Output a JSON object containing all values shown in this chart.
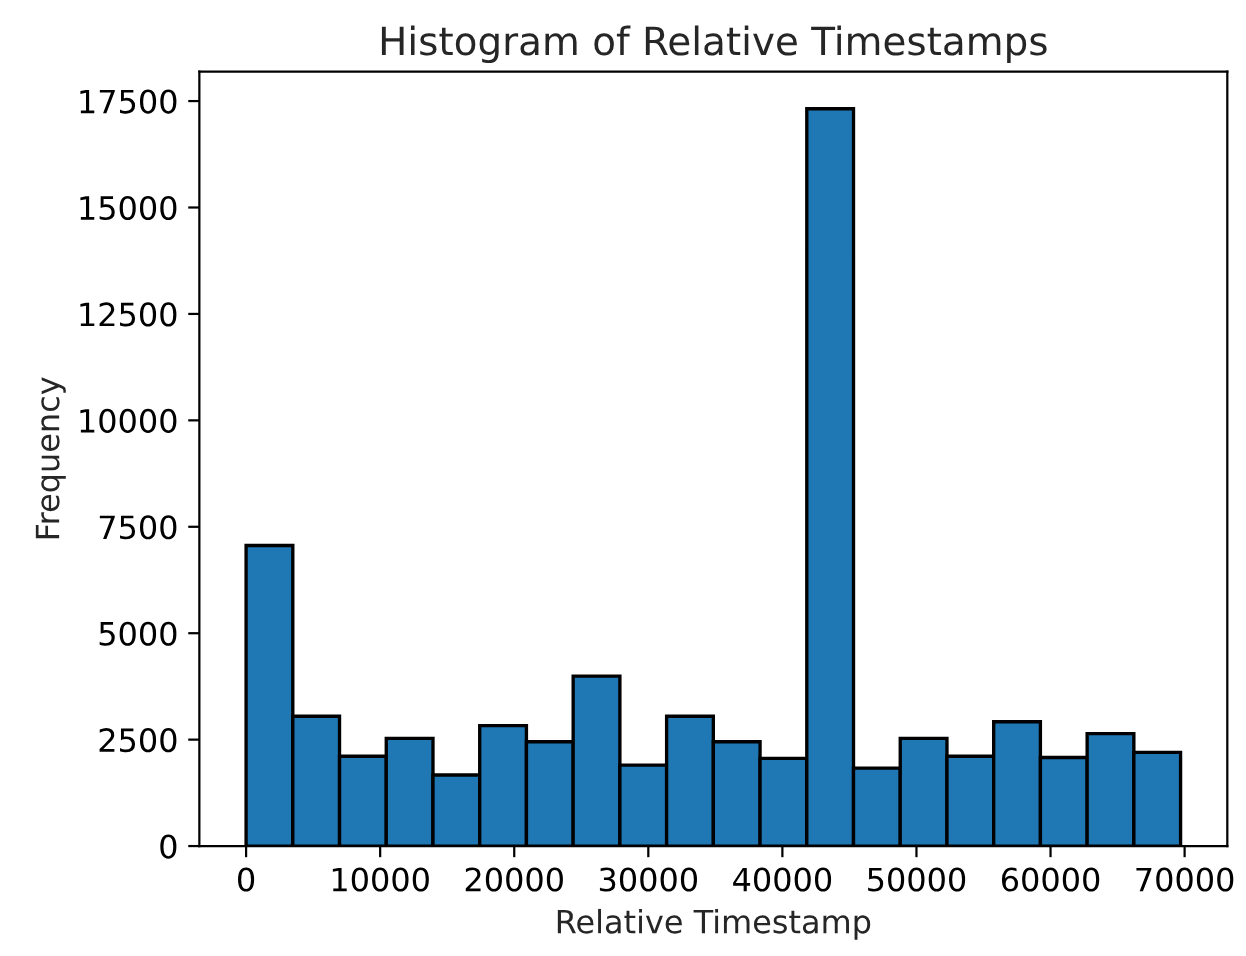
{
  "chart_data": {
    "type": "histogram",
    "title": "Histogram of Relative Timestamps",
    "xlabel": "Relative Timestamp",
    "ylabel": "Frequency",
    "bins": [
      0,
      3485,
      6970,
      10455,
      13940,
      17425,
      20910,
      24395,
      27880,
      31365,
      34850,
      38335,
      41820,
      45305,
      48790,
      52275,
      55760,
      59245,
      62730,
      66215,
      69700
    ],
    "values": [
      7060,
      3050,
      2110,
      2530,
      1670,
      2830,
      2450,
      3990,
      1900,
      3050,
      2450,
      2060,
      17320,
      1830,
      2530,
      2110,
      2920,
      2080,
      2640,
      2200
    ],
    "color": "#1f77b4",
    "xlim": [
      -3485,
      73185
    ],
    "ylim": [
      0,
      18190
    ],
    "xticks": [
      0,
      10000,
      20000,
      30000,
      40000,
      50000,
      60000,
      70000
    ],
    "yticks": [
      0,
      2500,
      5000,
      7500,
      10000,
      12500,
      15000,
      17500
    ],
    "grid": false
  }
}
